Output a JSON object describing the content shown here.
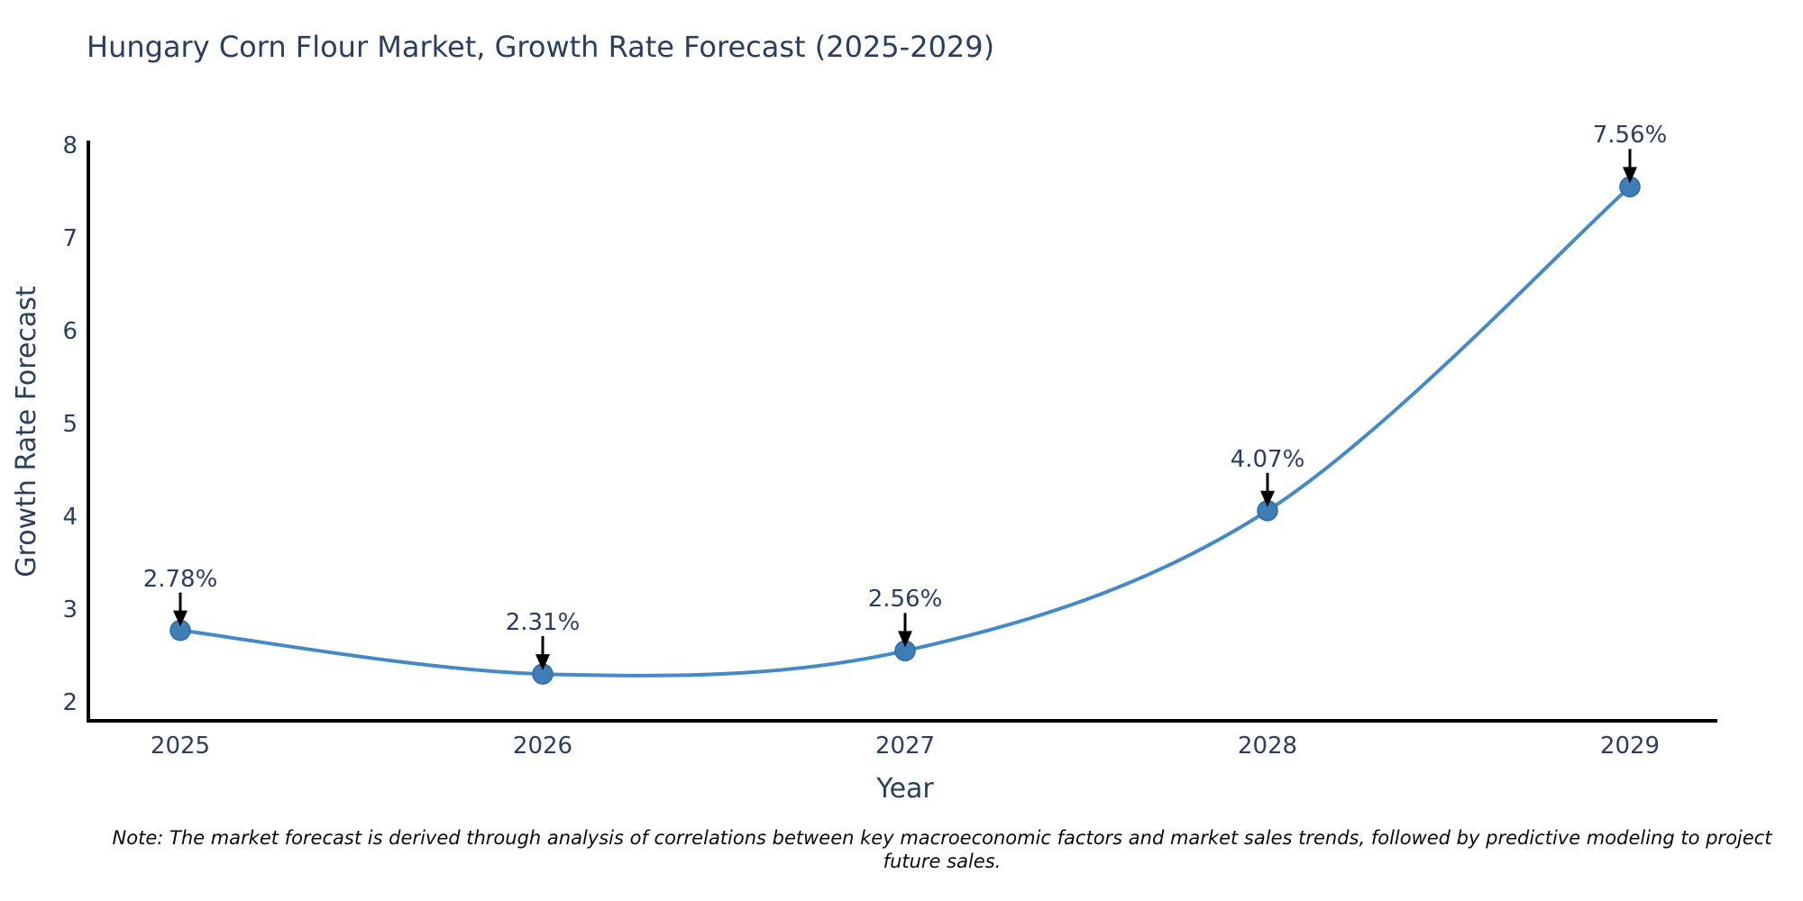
{
  "title": "Hungary Corn Flour Market, Growth Rate Forecast (2025-2029)",
  "note": "Note: The market forecast is derived through analysis of correlations between key macroeconomic factors and market sales trends, followed by predictive modeling to project future sales.",
  "chart_data": {
    "type": "line",
    "title": "Hungary Corn Flour Market, Growth Rate Forecast (2025-2029)",
    "xlabel": "Year",
    "ylabel": "Growth Rate Forecast",
    "x": [
      "2025",
      "2026",
      "2027",
      "2028",
      "2029"
    ],
    "values": [
      2.78,
      2.31,
      2.56,
      4.07,
      7.56
    ],
    "annotations": [
      "2.78%",
      "2.31%",
      "2.56%",
      "4.07%",
      "7.56%"
    ],
    "yticks": [
      2,
      3,
      4,
      5,
      6,
      7,
      8
    ],
    "ylim": [
      1.8,
      8.07
    ],
    "line_shape": "spline",
    "grid": false,
    "legend": "none",
    "colors": {
      "line": "#4589c6",
      "marker": "#3f7db6",
      "marker_edge": "#2f6ba6",
      "axis": "#000000",
      "arrow": "#000000",
      "text": "#2a3f5f",
      "note_text": "#0a0a0a",
      "background": "#ffffff"
    }
  }
}
